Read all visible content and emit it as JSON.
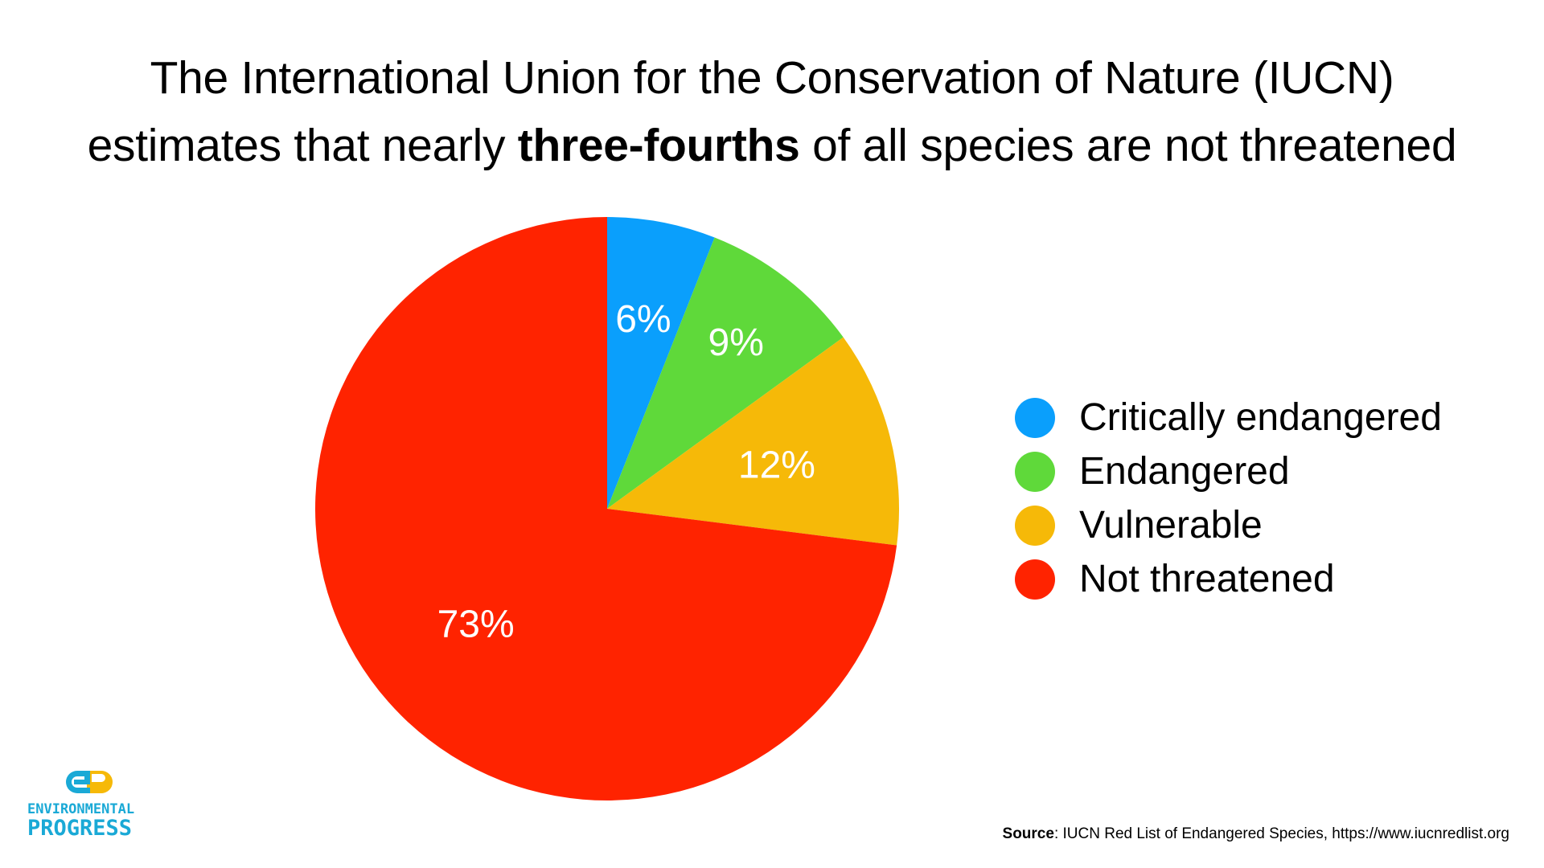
{
  "title": {
    "line1": "The International Union for the Conservation of Nature (IUCN)",
    "line2_before": "estimates that nearly ",
    "line2_bold": "three-fourths",
    "line2_after": " of all species are not threatened"
  },
  "chart_data": {
    "type": "pie",
    "start_angle_deg": 0,
    "direction": "clockwise",
    "slices": [
      {
        "label": "Critically endangered",
        "value": 6,
        "display": "6%",
        "color": "#0a9ffc"
      },
      {
        "label": "Endangered",
        "value": 9,
        "display": "9%",
        "color": "#5fd93a"
      },
      {
        "label": "Vulnerable",
        "value": 12,
        "display": "12%",
        "color": "#f6b908"
      },
      {
        "label": "Not threatened",
        "value": 73,
        "display": "73%",
        "color": "#ff2300"
      }
    ],
    "legend_position": "right",
    "label_color": "#ffffff"
  },
  "legend": {
    "items": [
      {
        "label": "Critically endangered",
        "color": "#0a9ffc"
      },
      {
        "label": "Endangered",
        "color": "#5fd93a"
      },
      {
        "label": "Vulnerable",
        "color": "#f6b908"
      },
      {
        "label": "Not threatened",
        "color": "#ff2300"
      }
    ]
  },
  "logo": {
    "monogram": "ep",
    "line1": "ENVIRONMENTAL",
    "line2": "PROGRESS",
    "blue": "#1aa9d6",
    "yellow": "#f6b908"
  },
  "source": {
    "label": "Source",
    "text": ": IUCN Red List of Endangered Species, https://www.iucnredlist.org"
  }
}
